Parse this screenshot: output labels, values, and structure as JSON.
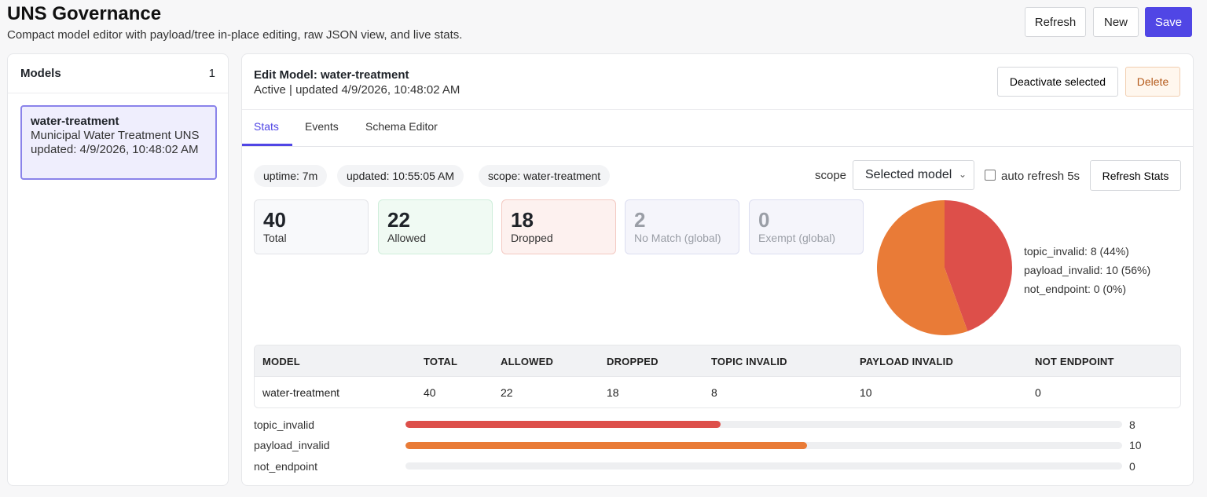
{
  "header": {
    "title": "UNS Governance",
    "subtitle": "Compact model editor with payload/tree in-place editing, raw JSON view, and live stats.",
    "buttons": {
      "refresh": "Refresh",
      "new": "New",
      "save": "Save"
    }
  },
  "sidebar": {
    "title": "Models",
    "count": "1",
    "models": [
      {
        "name": "water-treatment",
        "description": "Municipal Water Treatment UNS",
        "updated": "updated: 4/9/2026, 10:48:02 AM"
      }
    ]
  },
  "editor": {
    "title": "Edit Model: water-treatment",
    "meta": "Active | updated 4/9/2026, 10:48:02 AM",
    "deactivate_label": "Deactivate selected",
    "delete_label": "Delete",
    "tabs": [
      "Stats",
      "Events",
      "Schema Editor"
    ],
    "active_tab": "Stats"
  },
  "stats": {
    "chips": {
      "uptime": "uptime: 7m",
      "updated": "updated: 10:55:05 AM",
      "scope": "scope: water-treatment"
    },
    "scope_label": "scope",
    "scope_value": "Selected model",
    "auto_refresh_label": "auto refresh 5s",
    "auto_refresh_checked": false,
    "refresh_label": "Refresh Stats",
    "cards": [
      {
        "value": "40",
        "label": "Total"
      },
      {
        "value": "22",
        "label": "Allowed"
      },
      {
        "value": "18",
        "label": "Dropped"
      },
      {
        "value": "2",
        "label": "No Match (global)"
      },
      {
        "value": "0",
        "label": "Exempt (global)"
      }
    ],
    "pie": {
      "slices": [
        {
          "name": "topic_invalid",
          "value": 8,
          "color": "#dd4f4a"
        },
        {
          "name": "payload_invalid",
          "value": 10,
          "color": "#e97b37"
        },
        {
          "name": "not_endpoint",
          "value": 0,
          "color": "#9aa0a8"
        }
      ],
      "legend": [
        "topic_invalid: 8 (44%)",
        "payload_invalid: 10 (56%)",
        "not_endpoint: 0 (0%)"
      ]
    },
    "table": {
      "headers": [
        "MODEL",
        "TOTAL",
        "ALLOWED",
        "DROPPED",
        "TOPIC INVALID",
        "PAYLOAD INVALID",
        "NOT ENDPOINT"
      ],
      "rows": [
        [
          "water-treatment",
          "40",
          "22",
          "18",
          "8",
          "10",
          "0"
        ]
      ]
    },
    "bars": [
      {
        "label": "topic_invalid",
        "value": 8,
        "value_text": "8",
        "fraction": 0.44,
        "color": "#dd4f4a"
      },
      {
        "label": "payload_invalid",
        "value": 10,
        "value_text": "10",
        "fraction": 0.56,
        "color": "#e97b37"
      },
      {
        "label": "not_endpoint",
        "value": 0,
        "value_text": "0",
        "fraction": 0,
        "color": "#9aa0a8"
      }
    ]
  }
}
